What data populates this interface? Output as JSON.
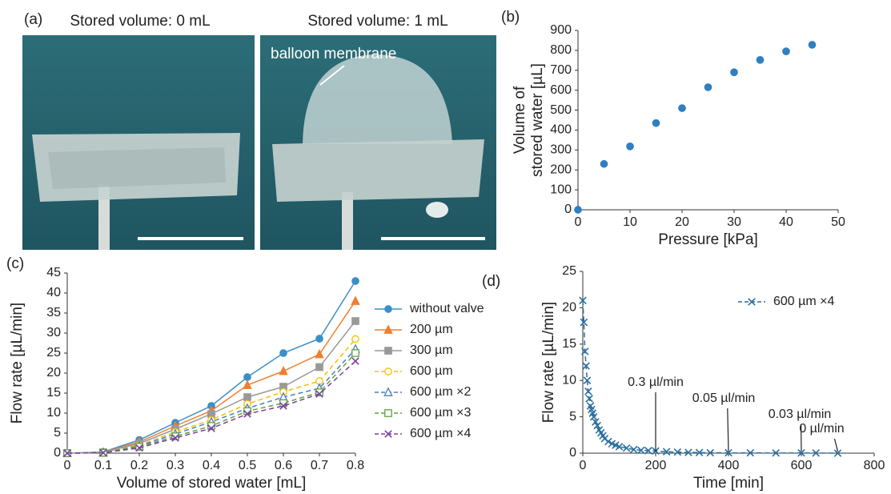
{
  "panels": {
    "a": {
      "panel_label": "(a)",
      "left_caption": "Stored volume: 0 mL",
      "right_caption": "Stored volume: 1 mL",
      "annotation": "balloon membrane"
    }
  },
  "chart_data": [
    {
      "type": "scatter",
      "panel_label": "(b)",
      "xlabel": "Pressure [kPa]",
      "ylabel": [
        "Volume of",
        "stored water [µL]"
      ],
      "x": [
        0,
        5,
        10,
        15,
        20,
        25,
        30,
        35,
        40,
        45
      ],
      "series": [
        {
          "color": "#2f7fc1",
          "values": [
            0,
            230,
            318,
            435,
            510,
            615,
            690,
            752,
            795,
            828
          ]
        }
      ],
      "xlim": [
        0,
        50
      ],
      "xticks": [
        0,
        10,
        20,
        30,
        40,
        50
      ],
      "ylim": [
        0,
        900
      ],
      "yticks": [
        0,
        100,
        200,
        300,
        400,
        500,
        600,
        700,
        800,
        900
      ]
    },
    {
      "type": "line",
      "panel_label": "(c)",
      "xlabel": "Volume of stored water [mL]",
      "ylabel": [
        "Flow rate [µL/min]"
      ],
      "x": [
        0,
        0.1,
        0.2,
        0.3,
        0.4,
        0.5,
        0.6,
        0.7,
        0.8
      ],
      "legend": "right",
      "series": [
        {
          "name": "without valve",
          "color": "#3a8fc8",
          "marker": "circle",
          "dashed": false,
          "values": [
            0,
            0.3,
            3.3,
            7.6,
            11.8,
            19,
            25,
            28.6,
            43
          ]
        },
        {
          "name": "200 µm",
          "color": "#f07f30",
          "marker": "triangle",
          "dashed": false,
          "values": [
            0,
            0.2,
            2.8,
            6.8,
            10.6,
            17,
            20.5,
            24.7,
            38
          ]
        },
        {
          "name": "300 µm",
          "color": "#999999",
          "marker": "square",
          "dashed": false,
          "values": [
            0,
            0.2,
            2.4,
            6,
            9.8,
            14,
            16.6,
            21.5,
            33
          ]
        },
        {
          "name": "600 µm",
          "color": "#f5c000",
          "marker": "circle-open",
          "dashed": true,
          "values": [
            0,
            0.1,
            2,
            5.3,
            8.3,
            12.3,
            15.3,
            18,
            28.5
          ]
        },
        {
          "name": "600 µm ×2",
          "color": "#4a7fc0",
          "marker": "triangle-open",
          "dashed": true,
          "values": [
            0,
            0.1,
            1.8,
            4.8,
            7.8,
            11.2,
            14,
            16.2,
            26
          ]
        },
        {
          "name": "600 µm ×3",
          "color": "#60a040",
          "marker": "square-open",
          "dashed": true,
          "values": [
            0,
            0.1,
            1.6,
            4.2,
            6.8,
            10.5,
            12.5,
            15.2,
            25
          ]
        },
        {
          "name": "600 µm ×4",
          "color": "#7a3fa0",
          "marker": "x",
          "dashed": true,
          "values": [
            0,
            0.1,
            1.3,
            3.8,
            6.2,
            9.8,
            11.8,
            14.8,
            23
          ]
        }
      ],
      "xlim": [
        0,
        0.8
      ],
      "xticks": [
        0,
        0.1,
        0.2,
        0.3,
        0.4,
        0.5,
        0.6,
        0.7,
        0.8
      ],
      "ylim": [
        0,
        45
      ],
      "yticks": [
        0,
        5,
        10,
        15,
        20,
        25,
        30,
        35,
        40,
        45
      ]
    },
    {
      "type": "line",
      "panel_label": "(d)",
      "xlabel": "Time [min]",
      "ylabel": [
        "Flow rate [µL/min]"
      ],
      "legend": "upper right",
      "x": [
        0,
        3,
        6,
        9,
        12,
        15,
        18,
        21,
        24,
        27,
        30,
        35,
        40,
        45,
        50,
        55,
        60,
        70,
        80,
        90,
        100,
        120,
        140,
        160,
        180,
        200,
        230,
        260,
        290,
        320,
        350,
        400,
        460,
        530,
        600,
        640,
        700
      ],
      "series": [
        {
          "name": "600 µm ×4",
          "color": "#2a6fa0",
          "marker": "x",
          "dashed": true,
          "values": [
            21,
            18,
            14,
            12,
            10,
            8.5,
            7.5,
            6.5,
            6,
            5.5,
            5,
            4.3,
            3.8,
            3.2,
            2.8,
            2.4,
            2,
            1.6,
            1.3,
            1.1,
            0.9,
            0.7,
            0.5,
            0.4,
            0.35,
            0.3,
            0.2,
            0.15,
            0.1,
            0.08,
            0.06,
            0.05,
            0.04,
            0.03,
            0.03,
            0.02,
            0
          ]
        }
      ],
      "annotations": [
        {
          "text": "0.3 µl/min",
          "x": 200,
          "y": 0
        },
        {
          "text": "0.05 µl/min",
          "x": 400,
          "y": 0
        },
        {
          "text": "0.03 µl/min",
          "x": 600,
          "y": 0
        },
        {
          "text": "0 µl/min",
          "x": 700,
          "y": 0
        }
      ],
      "xlim": [
        0,
        800
      ],
      "xticks": [
        0,
        200,
        400,
        600,
        800
      ],
      "ylim": [
        0,
        25
      ],
      "yticks": [
        0,
        5,
        10,
        15,
        20,
        25
      ]
    }
  ]
}
